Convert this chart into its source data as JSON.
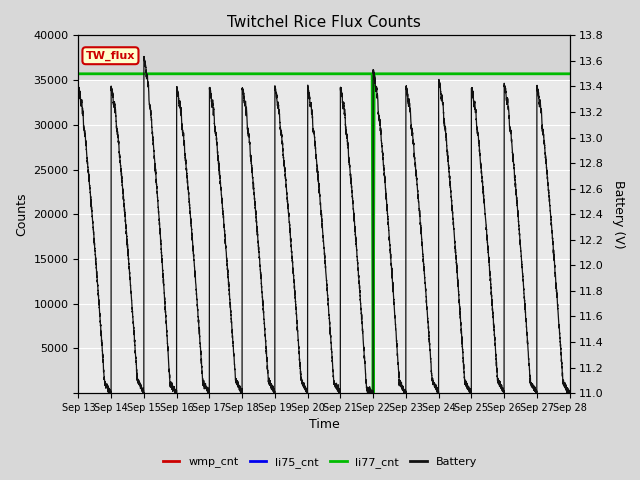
{
  "title": "Twitchel Rice Flux Counts",
  "xlabel": "Time",
  "ylabel_left": "Counts",
  "ylabel_right": "Battery (V)",
  "ylim_left": [
    0,
    40000
  ],
  "ylim_right": [
    11.0,
    13.8
  ],
  "yticks_left": [
    0,
    5000,
    10000,
    15000,
    20000,
    25000,
    30000,
    35000,
    40000
  ],
  "yticks_right": [
    11.0,
    11.2,
    11.4,
    11.6,
    11.8,
    12.0,
    12.2,
    12.4,
    12.6,
    12.8,
    13.0,
    13.2,
    13.4,
    13.6,
    13.8
  ],
  "xtick_labels": [
    "Sep 13",
    "Sep 14",
    "Sep 15",
    "Sep 16",
    "Sep 17",
    "Sep 18",
    "Sep 19",
    "Sep 20",
    "Sep 21",
    "Sep 22",
    "Sep 23",
    "Sep 24",
    "Sep 25",
    "Sep 26",
    "Sep 27",
    "Sep 28"
  ],
  "annotation_text": "TW_flux",
  "annotation_box_color": "#FFFFCC",
  "annotation_text_color": "#CC0000",
  "li77_cnt_value": 35700,
  "li77_cnt_color": "#00BB00",
  "li75_cnt_color": "#0000EE",
  "wmp_cnt_color": "#CC0000",
  "battery_color": "#111111",
  "fig_bg_color": "#D8D8D8",
  "plot_bg_light": "#EBEBEB",
  "plot_bg_dark": "#D0D0D0",
  "grid_color": "#FFFFFF"
}
